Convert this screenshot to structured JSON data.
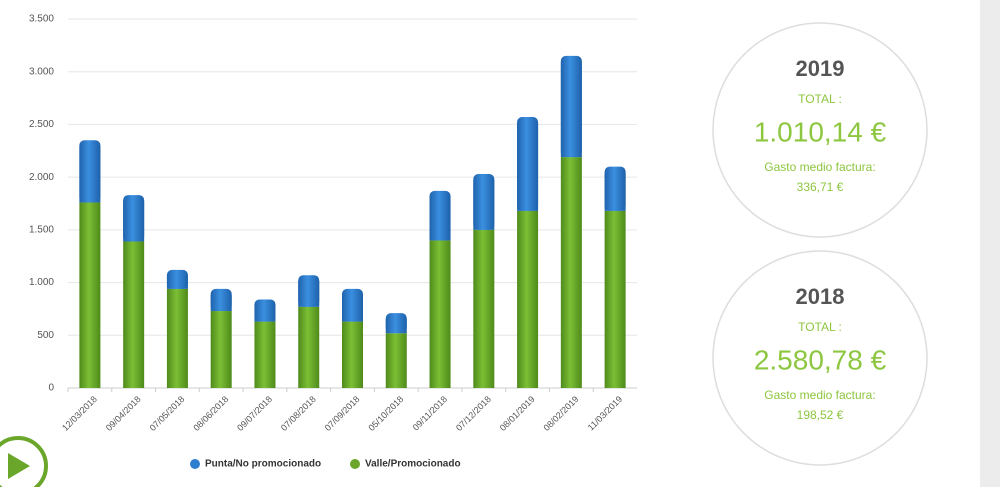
{
  "chart_data": {
    "type": "stacked_bar",
    "categories": [
      "12/03/2018",
      "09/04/2018",
      "07/05/2018",
      "08/06/2018",
      "09/07/2018",
      "07/08/2018",
      "07/09/2018",
      "05/10/2018",
      "09/11/2018",
      "07/12/2018",
      "08/01/2019",
      "08/02/2019",
      "11/03/2019"
    ],
    "series": [
      {
        "name": "Punta/No promocionado",
        "color": "#2f7fd0",
        "values": [
          590,
          440,
          180,
          210,
          210,
          300,
          310,
          190,
          470,
          530,
          890,
          960,
          420
        ]
      },
      {
        "name": "Valle/Promocionado",
        "color": "#6aa62a",
        "values": [
          1760,
          1390,
          940,
          730,
          630,
          770,
          630,
          520,
          1400,
          1500,
          1680,
          2190,
          1680
        ]
      }
    ],
    "ylim": [
      0,
      3500
    ],
    "yticks": [
      0,
      500,
      {
        "value": 1000,
        "label": "1.000"
      },
      {
        "value": 1500,
        "label": "1.500"
      },
      {
        "value": 2000,
        "label": "2.000"
      },
      {
        "value": 2500,
        "label": "2.500"
      },
      {
        "value": 3000,
        "label": "3.000"
      },
      {
        "value": 3500,
        "label": "3.500"
      }
    ],
    "grid": true,
    "legend": "bottom"
  },
  "cards": [
    {
      "year": "2019",
      "total_label": "TOTAL :",
      "total": "1.010,14 €",
      "avg_label": "Gasto medio factura:",
      "avg": "336,71 €"
    },
    {
      "year": "2018",
      "total_label": "TOTAL :",
      "total": "2.580,78 €",
      "avg_label": "Gasto medio factura:",
      "avg": "198,52 €"
    }
  ]
}
